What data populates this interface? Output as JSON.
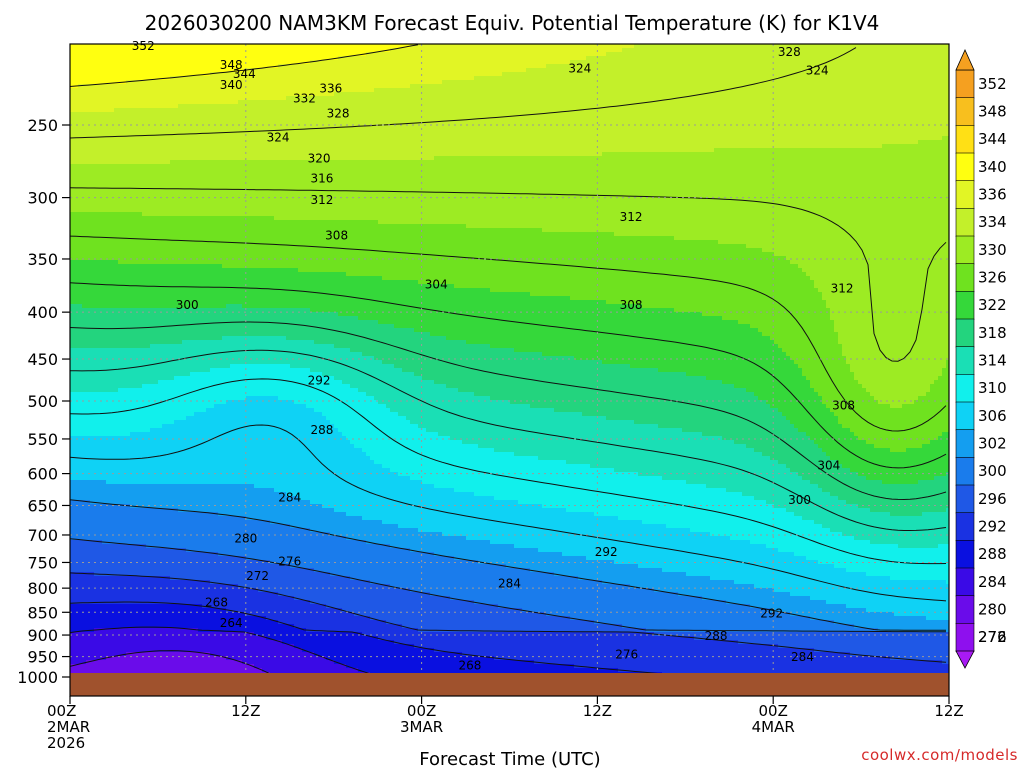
{
  "title": "2026030200 NAM3KM Forecast Equiv. Potential Temperature (K) for K1V4",
  "credit": "coolwx.com/models",
  "colors": {
    "ground": "#a0522d",
    "contour": "#111111",
    "grid": "#9a9a9a"
  },
  "chart_data": {
    "type": "heatmap",
    "title": "2026030200 NAM3KM Forecast Equiv. Potential Temperature (K) for K1V4",
    "xlabel": "Forecast Time (UTC)",
    "ylabel": "",
    "x_range_hours": [
      0,
      60
    ],
    "y_range_hPa": [
      1000,
      200
    ],
    "y_scale": "log-pressure",
    "grid": true,
    "x_ticks": [
      {
        "hour": 0,
        "lines": [
          "00Z",
          "2MAR",
          "2026"
        ]
      },
      {
        "hour": 12,
        "lines": [
          "12Z"
        ]
      },
      {
        "hour": 24,
        "lines": [
          "00Z",
          "3MAR"
        ]
      },
      {
        "hour": 36,
        "lines": [
          "12Z"
        ]
      },
      {
        "hour": 48,
        "lines": [
          "00Z",
          "4MAR"
        ]
      },
      {
        "hour": 60,
        "lines": [
          "12Z"
        ]
      }
    ],
    "y_ticks": [
      "250",
      "300",
      "350",
      "400",
      "450",
      "500",
      "550",
      "600",
      "650",
      "700",
      "750",
      "800",
      "850",
      "900",
      "950",
      "1000"
    ],
    "colorbar": {
      "levels": [
        "352",
        "348",
        "344",
        "340",
        "336",
        "334",
        "330",
        "326",
        "322",
        "318",
        "314",
        "310",
        "306",
        "302",
        "300",
        "296",
        "292",
        "288",
        "284",
        "280",
        "276",
        "272"
      ],
      "colors": [
        "#f5a020",
        "#f8bf1e",
        "#ffe015",
        "#ffff10",
        "#e2f525",
        "#c3f02a",
        "#9deb23",
        "#6fe21f",
        "#35d83a",
        "#23d47e",
        "#1adfb5",
        "#11f0ec",
        "#0fd2f5",
        "#149ef0",
        "#1a7cec",
        "#1f58e6",
        "#1a32e2",
        "#0a10e0",
        "#3a0ae6",
        "#6a0cea",
        "#8e10ee",
        "#a81af4"
      ]
    },
    "contour_labels": [
      {
        "text": "352",
        "hour": 5.0,
        "p": 205
      },
      {
        "text": "348",
        "hour": 11.0,
        "p": 215
      },
      {
        "text": "344",
        "hour": 11.9,
        "p": 220
      },
      {
        "text": "340",
        "hour": 11.0,
        "p": 226
      },
      {
        "text": "336",
        "hour": 17.8,
        "p": 228
      },
      {
        "text": "332",
        "hour": 16.0,
        "p": 234
      },
      {
        "text": "328",
        "hour": 18.3,
        "p": 243
      },
      {
        "text": "324",
        "hour": 14.2,
        "p": 258
      },
      {
        "text": "320",
        "hour": 17.0,
        "p": 272
      },
      {
        "text": "316",
        "hour": 17.2,
        "p": 286
      },
      {
        "text": "312",
        "hour": 17.2,
        "p": 302
      },
      {
        "text": "308",
        "hour": 18.2,
        "p": 330
      },
      {
        "text": "304",
        "hour": 25.0,
        "p": 373
      },
      {
        "text": "300",
        "hour": 8.0,
        "p": 393
      },
      {
        "text": "292",
        "hour": 17.0,
        "p": 475
      },
      {
        "text": "288",
        "hour": 17.2,
        "p": 538
      },
      {
        "text": "284",
        "hour": 15.0,
        "p": 637
      },
      {
        "text": "280",
        "hour": 12.0,
        "p": 706
      },
      {
        "text": "276",
        "hour": 15.0,
        "p": 748
      },
      {
        "text": "272",
        "hour": 12.8,
        "p": 776
      },
      {
        "text": "268",
        "hour": 10.0,
        "p": 829
      },
      {
        "text": "264",
        "hour": 11.0,
        "p": 873
      },
      {
        "text": "324",
        "hour": 34.8,
        "p": 217
      },
      {
        "text": "312",
        "hour": 38.3,
        "p": 315
      },
      {
        "text": "308",
        "hour": 38.3,
        "p": 393
      },
      {
        "text": "304",
        "hour": 51.8,
        "p": 588
      },
      {
        "text": "300",
        "hour": 49.8,
        "p": 641
      },
      {
        "text": "292",
        "hour": 36.6,
        "p": 731
      },
      {
        "text": "284",
        "hour": 30.0,
        "p": 791
      },
      {
        "text": "276",
        "hour": 38.0,
        "p": 945
      },
      {
        "text": "268",
        "hour": 27.3,
        "p": 972
      },
      {
        "text": "328",
        "hour": 49.1,
        "p": 208
      },
      {
        "text": "324",
        "hour": 51.0,
        "p": 218
      },
      {
        "text": "312",
        "hour": 52.7,
        "p": 377
      },
      {
        "text": "308",
        "hour": 52.8,
        "p": 506
      },
      {
        "text": "292",
        "hour": 47.9,
        "p": 853
      },
      {
        "text": "288",
        "hour": 44.1,
        "p": 902
      },
      {
        "text": "284",
        "hour": 50.0,
        "p": 951
      }
    ]
  }
}
